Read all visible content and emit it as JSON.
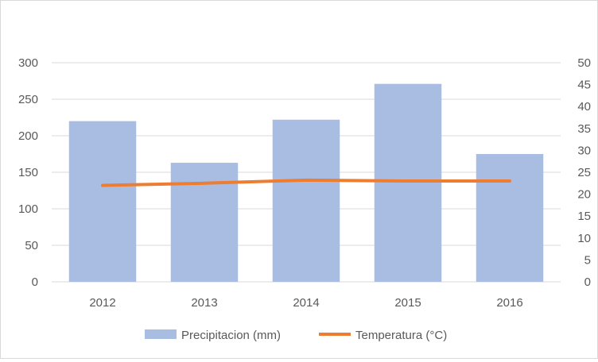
{
  "chart_data": {
    "type": "bar",
    "title": "",
    "categories": [
      "2012",
      "2013",
      "2014",
      "2015",
      "2016"
    ],
    "series": [
      {
        "name": "Precipitacion (mm)",
        "type": "bar",
        "axis": "left",
        "color": "#a9bde3",
        "values": [
          220,
          163,
          222,
          271,
          175
        ]
      },
      {
        "name": "Temperatura (°C)",
        "type": "line",
        "axis": "right",
        "color": "#ed7d31",
        "values": [
          22,
          22.5,
          23.2,
          23,
          23
        ]
      }
    ],
    "y_left": {
      "min": 0,
      "max": 300,
      "ticks": [
        "0",
        "50",
        "100",
        "150",
        "200",
        "250",
        "300"
      ]
    },
    "y_right": {
      "min": 0,
      "max": 50,
      "ticks": [
        "0",
        "5",
        "10",
        "15",
        "20",
        "25",
        "30",
        "35",
        "40",
        "45",
        "50"
      ]
    },
    "grid": true,
    "legend_position": "bottom"
  }
}
